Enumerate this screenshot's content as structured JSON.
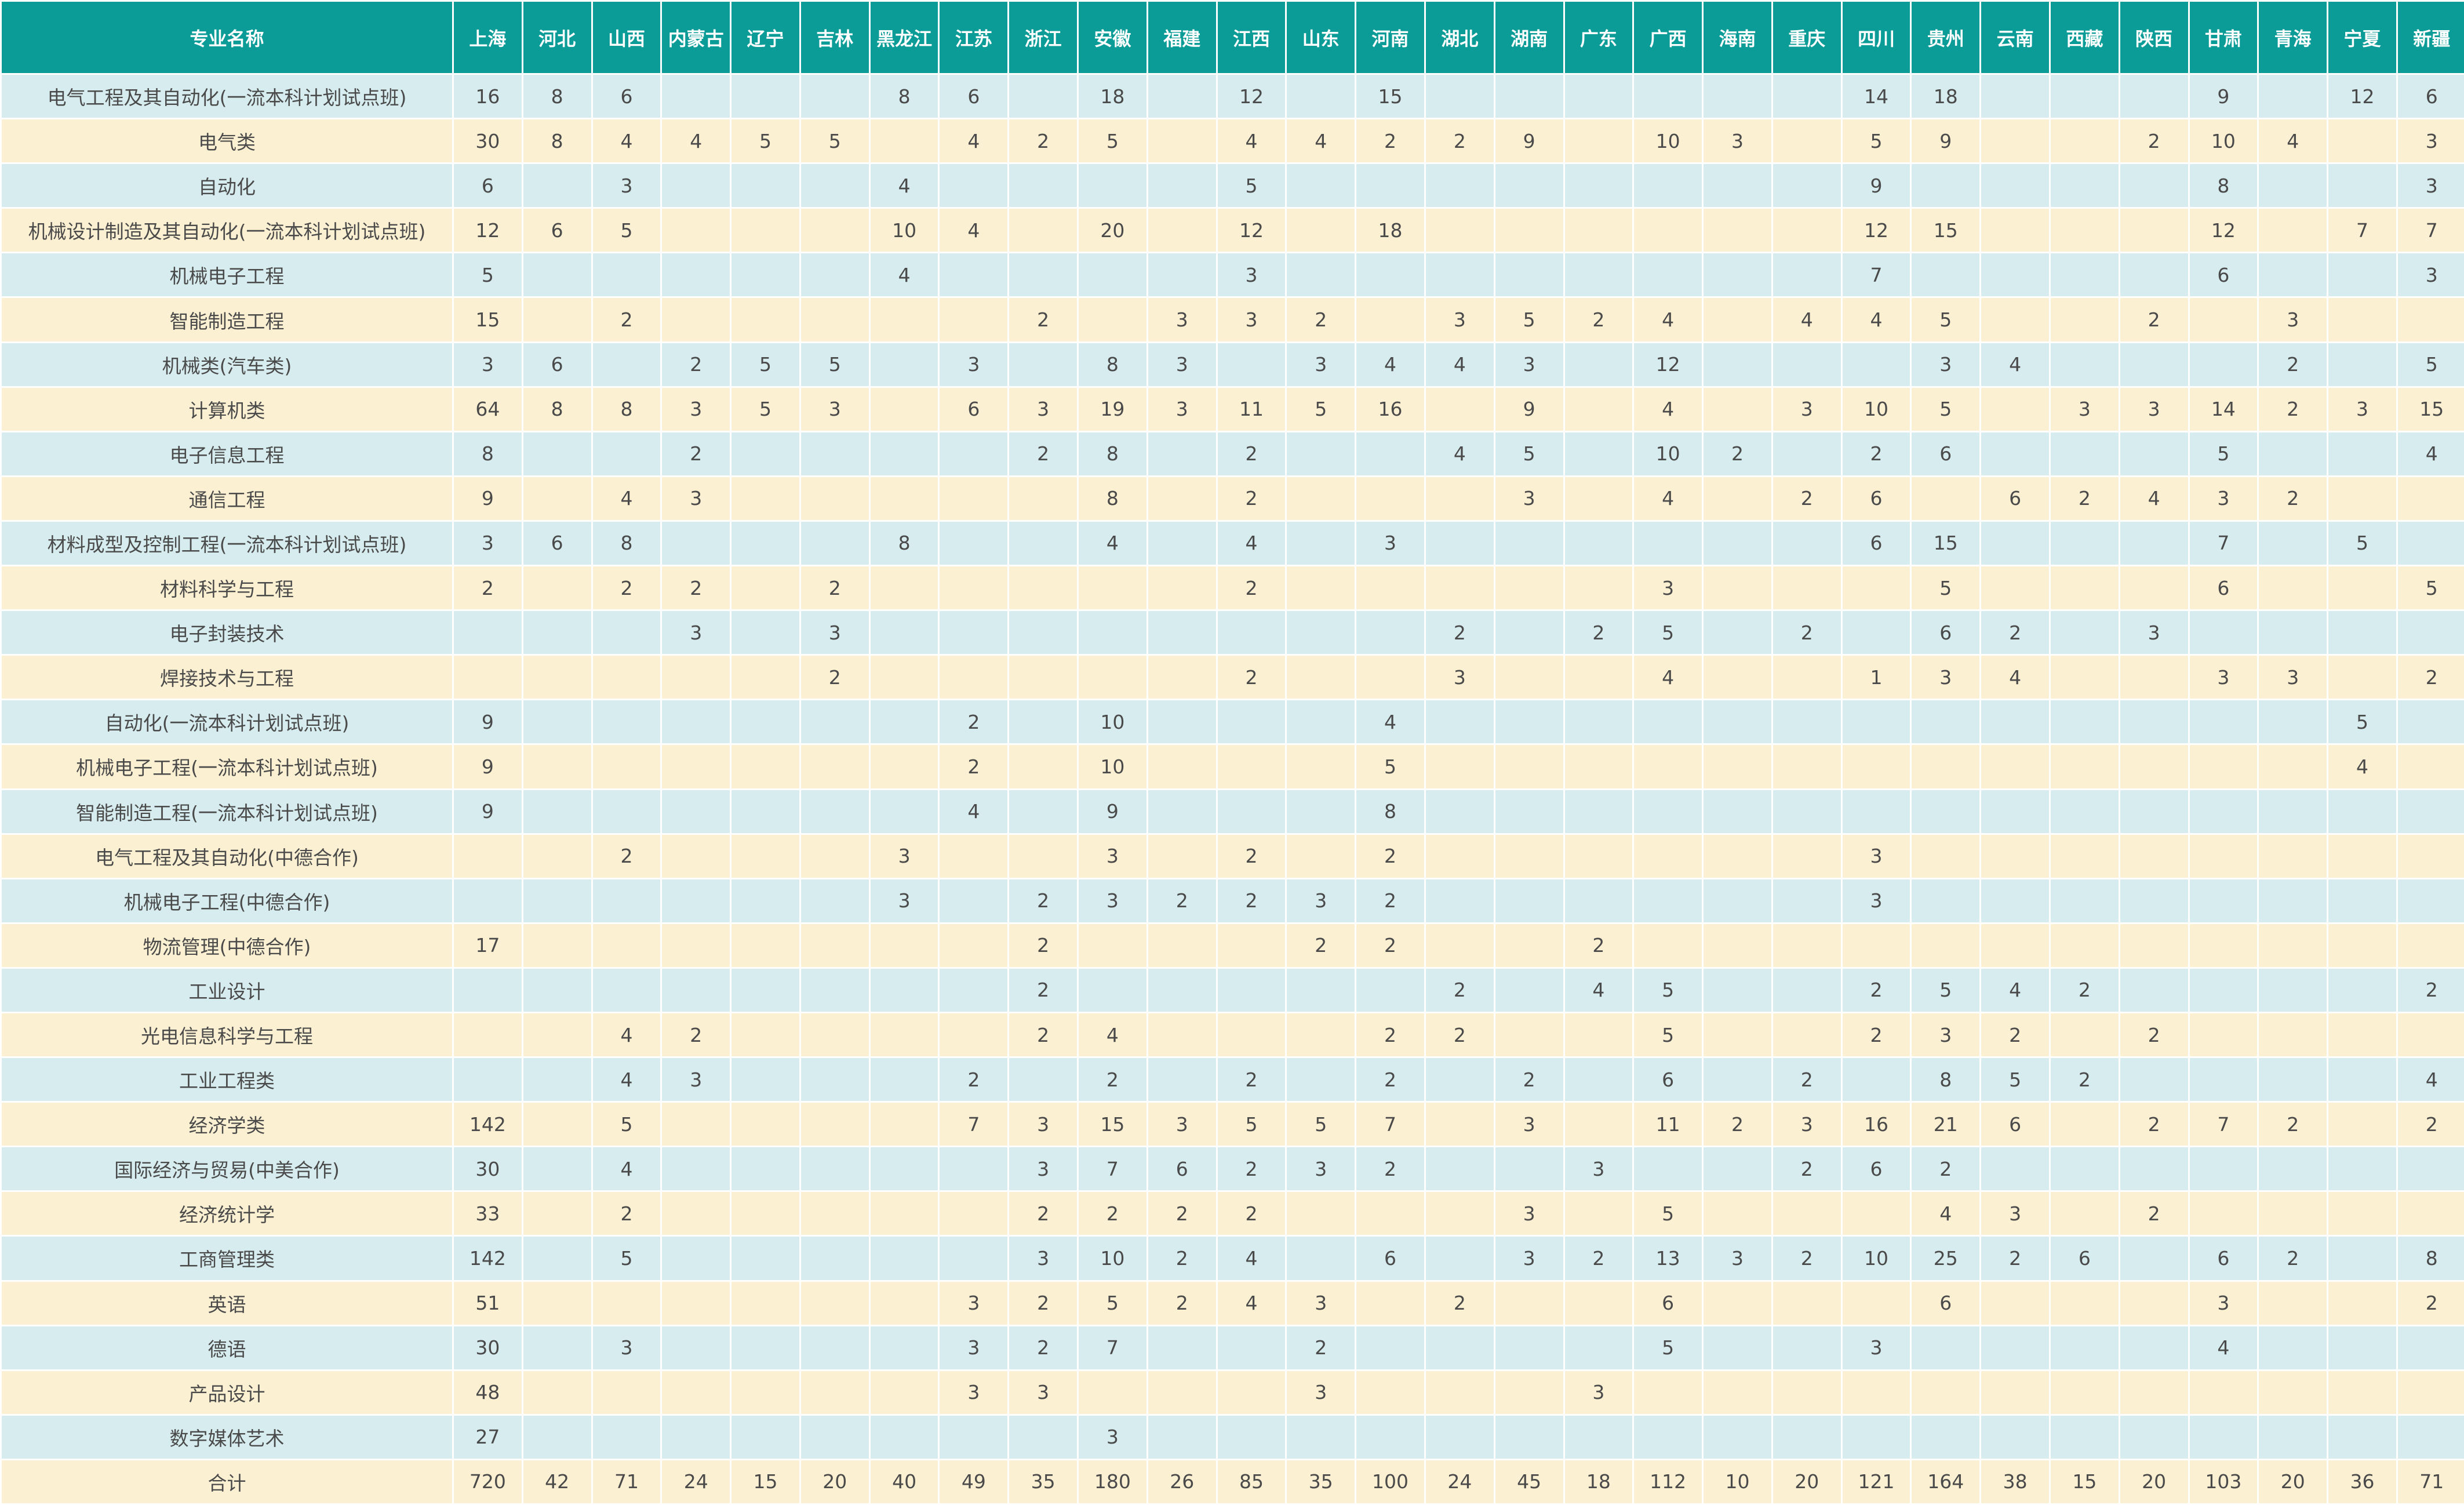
{
  "colors": {
    "header_bg": "#0b9c98",
    "header_text": "#ffffff",
    "row_blue": "#d6ecef",
    "row_cream": "#fcf0d2",
    "cell_text": "#4a4a4a"
  },
  "table": {
    "name_header": "专业名称",
    "provinces": [
      "上海",
      "河北",
      "山西",
      "内蒙古",
      "辽宁",
      "吉林",
      "黑龙江",
      "江苏",
      "浙江",
      "安徽",
      "福建",
      "江西",
      "山东",
      "河南",
      "湖北",
      "湖南",
      "广东",
      "广西",
      "海南",
      "重庆",
      "四川",
      "贵州",
      "云南",
      "西藏",
      "陕西",
      "甘肃",
      "青海",
      "宁夏",
      "新疆"
    ],
    "rows": [
      {
        "name": "电气工程及其自动化(一流本科计划试点班)",
        "values": [
          "16",
          "8",
          "6",
          "",
          "",
          "",
          "8",
          "6",
          "",
          "18",
          "",
          "12",
          "",
          "15",
          "",
          "",
          "",
          "",
          "",
          "",
          "14",
          "18",
          "",
          "",
          "",
          "9",
          "",
          "12",
          "6"
        ]
      },
      {
        "name": "电气类",
        "values": [
          "30",
          "8",
          "4",
          "4",
          "5",
          "5",
          "",
          "4",
          "2",
          "5",
          "",
          "4",
          "4",
          "2",
          "2",
          "9",
          "",
          "10",
          "3",
          "",
          "5",
          "9",
          "",
          "",
          "2",
          "10",
          "4",
          "",
          "3"
        ]
      },
      {
        "name": "自动化",
        "values": [
          "6",
          "",
          "3",
          "",
          "",
          "",
          "4",
          "",
          "",
          "",
          "",
          "5",
          "",
          "",
          "",
          "",
          "",
          "",
          "",
          "",
          "9",
          "",
          "",
          "",
          "",
          "8",
          "",
          "",
          "3"
        ]
      },
      {
        "name": "机械设计制造及其自动化(一流本科计划试点班)",
        "values": [
          "12",
          "6",
          "5",
          "",
          "",
          "",
          "10",
          "4",
          "",
          "20",
          "",
          "12",
          "",
          "18",
          "",
          "",
          "",
          "",
          "",
          "",
          "12",
          "15",
          "",
          "",
          "",
          "12",
          "",
          "7",
          "7"
        ]
      },
      {
        "name": "机械电子工程",
        "values": [
          "5",
          "",
          "",
          "",
          "",
          "",
          "4",
          "",
          "",
          "",
          "",
          "3",
          "",
          "",
          "",
          "",
          "",
          "",
          "",
          "",
          "7",
          "",
          "",
          "",
          "",
          "6",
          "",
          "",
          "3"
        ]
      },
      {
        "name": "智能制造工程",
        "values": [
          "15",
          "",
          "2",
          "",
          "",
          "",
          "",
          "",
          "2",
          "",
          "3",
          "3",
          "2",
          "",
          "3",
          "5",
          "2",
          "4",
          "",
          "4",
          "4",
          "5",
          "",
          "",
          "2",
          "",
          "3",
          "",
          ""
        ]
      },
      {
        "name": "机械类(汽车类)",
        "values": [
          "3",
          "6",
          "",
          "2",
          "5",
          "5",
          "",
          "3",
          "",
          "8",
          "3",
          "",
          "3",
          "4",
          "4",
          "3",
          "",
          "12",
          "",
          "",
          "",
          "3",
          "4",
          "",
          "",
          "",
          "2",
          "",
          "5"
        ]
      },
      {
        "name": "计算机类",
        "values": [
          "64",
          "8",
          "8",
          "3",
          "5",
          "3",
          "",
          "6",
          "3",
          "19",
          "3",
          "11",
          "5",
          "16",
          "",
          "9",
          "",
          "4",
          "",
          "3",
          "10",
          "5",
          "",
          "3",
          "3",
          "14",
          "2",
          "3",
          "15"
        ]
      },
      {
        "name": "电子信息工程",
        "values": [
          "8",
          "",
          "",
          "2",
          "",
          "",
          "",
          "",
          "2",
          "8",
          "",
          "2",
          "",
          "",
          "4",
          "5",
          "",
          "10",
          "2",
          "",
          "2",
          "6",
          "",
          "",
          "",
          "5",
          "",
          "",
          "4"
        ]
      },
      {
        "name": "通信工程",
        "values": [
          "9",
          "",
          "4",
          "3",
          "",
          "",
          "",
          "",
          "",
          "8",
          "",
          "2",
          "",
          "",
          "",
          "3",
          "",
          "4",
          "",
          "2",
          "6",
          "",
          "6",
          "2",
          "4",
          "3",
          "2",
          "",
          ""
        ]
      },
      {
        "name": "材料成型及控制工程(一流本科计划试点班)",
        "values": [
          "3",
          "6",
          "8",
          "",
          "",
          "",
          "8",
          "",
          "",
          "4",
          "",
          "4",
          "",
          "3",
          "",
          "",
          "",
          "",
          "",
          "",
          "6",
          "15",
          "",
          "",
          "",
          "7",
          "",
          "5",
          ""
        ]
      },
      {
        "name": "材料科学与工程",
        "values": [
          "2",
          "",
          "2",
          "2",
          "",
          "2",
          "",
          "",
          "",
          "",
          "",
          "2",
          "",
          "",
          "",
          "",
          "",
          "3",
          "",
          "",
          "",
          "5",
          "",
          "",
          "",
          "6",
          "",
          "",
          "5"
        ]
      },
      {
        "name": "电子封装技术",
        "values": [
          "",
          "",
          "",
          "3",
          "",
          "3",
          "",
          "",
          "",
          "",
          "",
          "",
          "",
          "",
          "2",
          "",
          "2",
          "5",
          "",
          "2",
          "",
          "6",
          "2",
          "",
          "3",
          "",
          "",
          "",
          ""
        ]
      },
      {
        "name": "焊接技术与工程",
        "values": [
          "",
          "",
          "",
          "",
          "",
          "2",
          "",
          "",
          "",
          "",
          "",
          "2",
          "",
          "",
          "3",
          "",
          "",
          "4",
          "",
          "",
          "1",
          "3",
          "4",
          "",
          "",
          "3",
          "3",
          "",
          "2"
        ]
      },
      {
        "name": "自动化(一流本科计划试点班)",
        "values": [
          "9",
          "",
          "",
          "",
          "",
          "",
          "",
          "2",
          "",
          "10",
          "",
          "",
          "",
          "4",
          "",
          "",
          "",
          "",
          "",
          "",
          "",
          "",
          "",
          "",
          "",
          "",
          "",
          "5",
          ""
        ]
      },
      {
        "name": "机械电子工程(一流本科计划试点班)",
        "values": [
          "9",
          "",
          "",
          "",
          "",
          "",
          "",
          "2",
          "",
          "10",
          "",
          "",
          "",
          "5",
          "",
          "",
          "",
          "",
          "",
          "",
          "",
          "",
          "",
          "",
          "",
          "",
          "",
          "4",
          ""
        ]
      },
      {
        "name": "智能制造工程(一流本科计划试点班)",
        "values": [
          "9",
          "",
          "",
          "",
          "",
          "",
          "",
          "4",
          "",
          "9",
          "",
          "",
          "",
          "8",
          "",
          "",
          "",
          "",
          "",
          "",
          "",
          "",
          "",
          "",
          "",
          "",
          "",
          "",
          ""
        ]
      },
      {
        "name": "电气工程及其自动化(中德合作)",
        "values": [
          "",
          "",
          "2",
          "",
          "",
          "",
          "3",
          "",
          "",
          "3",
          "",
          "2",
          "",
          "2",
          "",
          "",
          "",
          "",
          "",
          "",
          "3",
          "",
          "",
          "",
          "",
          "",
          "",
          "",
          ""
        ]
      },
      {
        "name": "机械电子工程(中德合作)",
        "values": [
          "",
          "",
          "",
          "",
          "",
          "",
          "3",
          "",
          "2",
          "3",
          "2",
          "2",
          "3",
          "2",
          "",
          "",
          "",
          "",
          "",
          "",
          "3",
          "",
          "",
          "",
          "",
          "",
          "",
          "",
          ""
        ]
      },
      {
        "name": "物流管理(中德合作)",
        "values": [
          "17",
          "",
          "",
          "",
          "",
          "",
          "",
          "",
          "2",
          "",
          "",
          "",
          "2",
          "2",
          "",
          "",
          "2",
          "",
          "",
          "",
          "",
          "",
          "",
          "",
          "",
          "",
          "",
          "",
          ""
        ]
      },
      {
        "name": "工业设计",
        "values": [
          "",
          "",
          "",
          "",
          "",
          "",
          "",
          "",
          "2",
          "",
          "",
          "",
          "",
          "",
          "2",
          "",
          "4",
          "5",
          "",
          "",
          "2",
          "5",
          "4",
          "2",
          "",
          "",
          "",
          "",
          "2"
        ]
      },
      {
        "name": "光电信息科学与工程",
        "values": [
          "",
          "",
          "4",
          "2",
          "",
          "",
          "",
          "",
          "2",
          "4",
          "",
          "",
          "",
          "2",
          "2",
          "",
          "",
          "5",
          "",
          "",
          "2",
          "3",
          "2",
          "",
          "2",
          "",
          "",
          "",
          ""
        ]
      },
      {
        "name": "工业工程类",
        "values": [
          "",
          "",
          "4",
          "3",
          "",
          "",
          "",
          "2",
          "",
          "2",
          "",
          "2",
          "",
          "2",
          "",
          "2",
          "",
          "6",
          "",
          "2",
          "",
          "8",
          "5",
          "2",
          "",
          "",
          "",
          "",
          "4"
        ]
      },
      {
        "name": "经济学类",
        "values": [
          "142",
          "",
          "5",
          "",
          "",
          "",
          "",
          "7",
          "3",
          "15",
          "3",
          "5",
          "5",
          "7",
          "",
          "3",
          "",
          "11",
          "2",
          "3",
          "16",
          "21",
          "6",
          "",
          "2",
          "7",
          "2",
          "",
          "2"
        ]
      },
      {
        "name": "国际经济与贸易(中美合作)",
        "values": [
          "30",
          "",
          "4",
          "",
          "",
          "",
          "",
          "",
          "3",
          "7",
          "6",
          "2",
          "3",
          "2",
          "",
          "",
          "3",
          "",
          "",
          "2",
          "6",
          "2",
          "",
          "",
          "",
          "",
          "",
          "",
          ""
        ]
      },
      {
        "name": "经济统计学",
        "values": [
          "33",
          "",
          "2",
          "",
          "",
          "",
          "",
          "",
          "2",
          "2",
          "2",
          "2",
          "",
          "",
          "",
          "3",
          "",
          "5",
          "",
          "",
          "",
          "4",
          "3",
          "",
          "2",
          "",
          "",
          "",
          ""
        ]
      },
      {
        "name": "工商管理类",
        "values": [
          "142",
          "",
          "5",
          "",
          "",
          "",
          "",
          "",
          "3",
          "10",
          "2",
          "4",
          "",
          "6",
          "",
          "3",
          "2",
          "13",
          "3",
          "2",
          "10",
          "25",
          "2",
          "6",
          "",
          "6",
          "2",
          "",
          "8"
        ]
      },
      {
        "name": "英语",
        "values": [
          "51",
          "",
          "",
          "",
          "",
          "",
          "",
          "3",
          "2",
          "5",
          "2",
          "4",
          "3",
          "",
          "2",
          "",
          "",
          "6",
          "",
          "",
          "",
          "6",
          "",
          "",
          "",
          "3",
          "",
          "",
          "2"
        ]
      },
      {
        "name": "德语",
        "values": [
          "30",
          "",
          "3",
          "",
          "",
          "",
          "",
          "3",
          "2",
          "7",
          "",
          "",
          "2",
          "",
          "",
          "",
          "",
          "5",
          "",
          "",
          "3",
          "",
          "",
          "",
          "",
          "4",
          "",
          "",
          ""
        ]
      },
      {
        "name": "产品设计",
        "values": [
          "48",
          "",
          "",
          "",
          "",
          "",
          "",
          "3",
          "3",
          "",
          "",
          "",
          "3",
          "",
          "",
          "",
          "3",
          "",
          "",
          "",
          "",
          "",
          "",
          "",
          "",
          "",
          "",
          "",
          ""
        ]
      },
      {
        "name": "数字媒体艺术",
        "values": [
          "27",
          "",
          "",
          "",
          "",
          "",
          "",
          "",
          "",
          "3",
          "",
          "",
          "",
          "",
          "",
          "",
          "",
          "",
          "",
          "",
          "",
          "",
          "",
          "",
          "",
          "",
          "",
          "",
          ""
        ]
      },
      {
        "name": "合计",
        "values": [
          "720",
          "42",
          "71",
          "24",
          "15",
          "20",
          "40",
          "49",
          "35",
          "180",
          "26",
          "85",
          "35",
          "100",
          "24",
          "45",
          "18",
          "112",
          "10",
          "20",
          "121",
          "164",
          "38",
          "15",
          "20",
          "103",
          "20",
          "36",
          "71"
        ]
      }
    ]
  }
}
